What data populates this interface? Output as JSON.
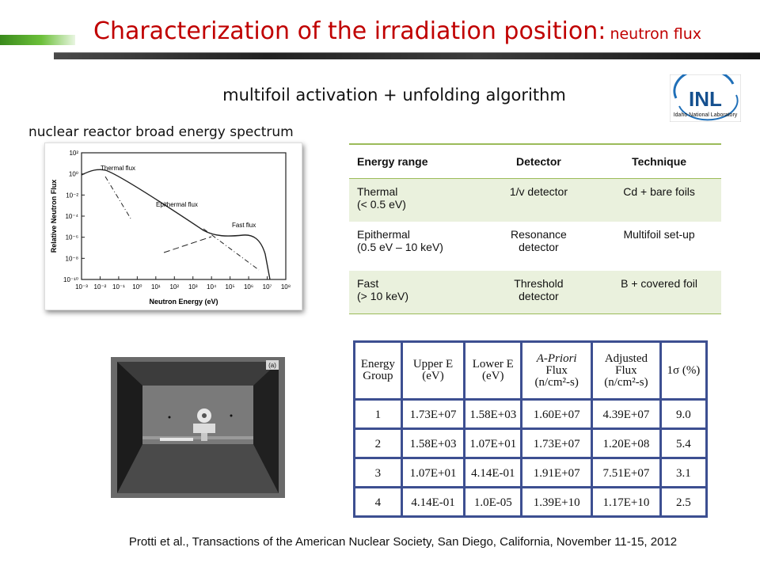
{
  "header": {
    "title_main": "Characterization of the irradiation position:",
    "title_sub": "neutron flux"
  },
  "subtitle": "multifoil activation + unfolding algorithm",
  "logo": {
    "text": "INL",
    "caption": "Idaho National Laboratory"
  },
  "spectrum": {
    "caption": "nuclear reactor broad energy spectrum",
    "y_axis_label": "Relative Neutron Flux",
    "x_axis_label": "Neutron Energy (eV)",
    "y_ticks": [
      "10²",
      "10⁰",
      "10⁻²",
      "10⁻⁴",
      "10⁻⁶",
      "10⁻⁸",
      "10⁻¹⁰"
    ],
    "x_ticks": [
      "10⁻³",
      "10⁻²",
      "10⁻¹",
      "10⁰",
      "10¹",
      "10²",
      "10³",
      "10⁴",
      "10⁵",
      "10⁶",
      "10⁷",
      "10⁸"
    ],
    "annotations": [
      "Thermal flux",
      "Epithermal flux",
      "Fast flux"
    ]
  },
  "technique_table": {
    "headers": [
      "Energy range",
      "Detector",
      "Technique"
    ],
    "rows": [
      {
        "range": [
          "Thermal",
          "(< 0.5 eV)"
        ],
        "detector": [
          "1/v detector"
        ],
        "technique": "Cd + bare foils"
      },
      {
        "range": [
          "Epithermal",
          "(0.5 eV – 10 keV)"
        ],
        "detector": [
          "Resonance",
          "detector"
        ],
        "technique": "Multifoil set-up"
      },
      {
        "range": [
          "Fast",
          "(> 10 keV)"
        ],
        "detector": [
          "Threshold",
          "detector"
        ],
        "technique": "B + covered foil"
      }
    ]
  },
  "photo": {
    "label": "(a)"
  },
  "group_table": {
    "headers": [
      [
        "Energy",
        "Group"
      ],
      [
        "Upper E",
        "(eV)"
      ],
      [
        "Lower E",
        "(eV)"
      ],
      [
        "A-Priori",
        "Flux",
        "(n/cm²-s)"
      ],
      [
        "Adjusted",
        "Flux",
        "(n/cm²-s)"
      ],
      [
        "1σ (%)"
      ]
    ],
    "rows": [
      [
        "1",
        "1.73E+07",
        "1.58E+03",
        "1.60E+07",
        "4.39E+07",
        "9.0"
      ],
      [
        "2",
        "1.58E+03",
        "1.07E+01",
        "1.73E+07",
        "1.20E+08",
        "5.4"
      ],
      [
        "3",
        "1.07E+01",
        "4.14E-01",
        "1.91E+07",
        "7.51E+07",
        "3.1"
      ],
      [
        "4",
        "4.14E-01",
        "1.0E-05",
        "1.39E+10",
        "1.17E+10",
        "2.5"
      ]
    ]
  },
  "citation": "Protti et al., Transactions of the American Nuclear Society, San Diego, California, November 11-15, 2012",
  "colors": {
    "title": "#c00000",
    "table_green": "#9bbb59",
    "row_shade": "#eaf1dd",
    "grid_blue": "#3d4f91"
  }
}
